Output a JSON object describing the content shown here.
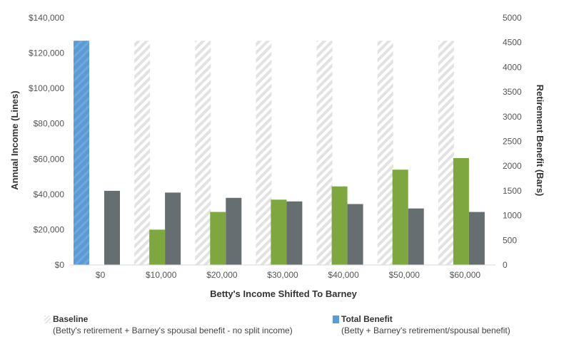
{
  "chart_data": {
    "type": "bar",
    "categories": [
      "$0",
      "$10,000",
      "$20,000",
      "$30,000",
      "$40,000",
      "$50,000",
      "$60,000"
    ],
    "xlabel": "Betty's Income Shifted To Barney",
    "ylabel_left": "Annual Income (Lines)",
    "ylabel_right": "Retirement Benefit (Bars)",
    "left_axis": {
      "ylim": [
        0,
        140000
      ],
      "ticks": [
        0,
        20000,
        40000,
        60000,
        80000,
        100000,
        120000,
        140000
      ],
      "tick_labels": [
        "$0",
        "$20,000",
        "$40,000",
        "$60,000",
        "$80,000",
        "$100,000",
        "$120,000",
        "$140,000"
      ]
    },
    "right_axis": {
      "ylim": [
        0,
        5000
      ],
      "ticks": [
        0,
        500,
        1000,
        1500,
        2000,
        2500,
        3000,
        3500,
        4000,
        4500,
        5000
      ],
      "tick_labels": [
        "0",
        "500",
        "1000",
        "1500",
        "2000",
        "2500",
        "3000",
        "3500",
        "4000",
        "4500",
        "5000"
      ]
    },
    "series": [
      {
        "name": "Baseline",
        "axis": "left",
        "style": "hatched",
        "color": "#e4e4e4",
        "values": [
          127000,
          127000,
          127000,
          127000,
          127000,
          127000,
          127000
        ]
      },
      {
        "name": "Total Benefit",
        "axis": "left",
        "style": "hatched",
        "color": "#5b9bd5",
        "values": [
          127000,
          null,
          null,
          null,
          null,
          null,
          null
        ]
      },
      {
        "axis": "left",
        "color": "#7ea83f",
        "values": [
          null,
          20000,
          30000,
          37000,
          44500,
          54000,
          60500
        ]
      },
      {
        "axis": "left",
        "color": "#676e72",
        "values": [
          42000,
          41000,
          38000,
          36000,
          34500,
          32000,
          30000
        ]
      }
    ],
    "grid": false
  },
  "legend": {
    "baseline_name": "Baseline",
    "baseline_desc": "(Betty's retirement + Barney's spousal benefit - no split income)",
    "total_name": "Total Benefit",
    "total_desc": "(Betty + Barney's retirement/spousal benefit)"
  }
}
